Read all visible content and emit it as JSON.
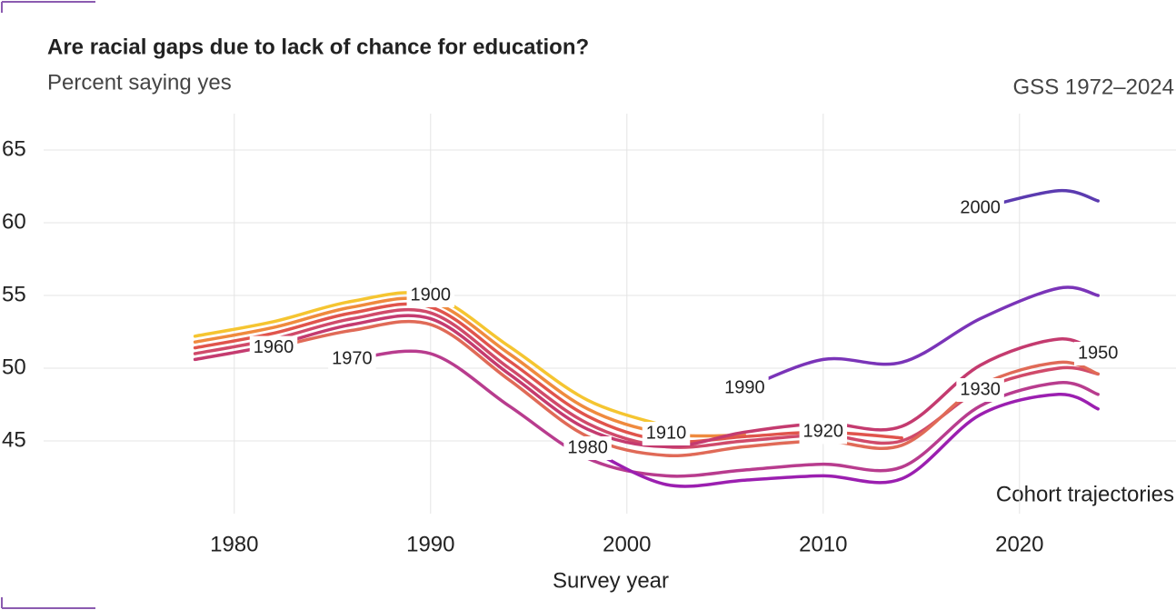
{
  "chart_data": {
    "type": "line",
    "title": "Are racial gaps due to lack of chance for education?",
    "subtitle": "Percent saying yes",
    "source": "GSS 1972–2024",
    "annotation": "Cohort trajectories",
    "x_label": "Survey year",
    "x": [
      1978,
      1982,
      1986,
      1990,
      1994,
      1998,
      2002,
      2006,
      2010,
      2014,
      2018,
      2022,
      2024
    ],
    "xlim": [
      1972,
      2027
    ],
    "xticks": [
      1980,
      1990,
      2000,
      2010,
      2020
    ],
    "ylim": [
      40,
      67.5
    ],
    "yticks": [
      45,
      50,
      55,
      60,
      65
    ],
    "grid": true,
    "series": [
      {
        "name": "1900",
        "color": "#f5c531",
        "values": [
          52.2,
          53.2,
          54.6,
          55.0,
          51.5,
          47.8,
          46.0,
          null,
          null,
          null,
          null,
          null,
          null
        ]
      },
      {
        "name": "1910",
        "color": "#ef8a3e",
        "values": [
          51.8,
          52.8,
          54.2,
          54.6,
          51.0,
          47.2,
          45.5,
          45.4,
          null,
          null,
          null,
          null,
          null
        ]
      },
      {
        "name": "1920",
        "color": "#e0544c",
        "values": [
          51.4,
          52.4,
          53.8,
          54.2,
          50.5,
          46.7,
          45.0,
          45.3,
          45.6,
          45.2,
          null,
          null,
          null
        ]
      },
      {
        "name": "1930",
        "color": "#d04a6a",
        "values": [
          51.0,
          52.0,
          53.4,
          53.8,
          50.0,
          46.2,
          44.6,
          45.0,
          45.4,
          45.0,
          48.5,
          50.0,
          49.6
        ]
      },
      {
        "name": "1950",
        "color": "#c43b6f",
        "values": [
          50.6,
          51.6,
          53.0,
          53.4,
          49.6,
          45.8,
          44.6,
          45.6,
          46.2,
          46.0,
          50.2,
          52.0,
          51.0
        ]
      },
      {
        "name": "1960",
        "color": "#e06a57",
        "values": [
          null,
          51.4,
          52.6,
          53.0,
          49.2,
          45.3,
          44.0,
          44.6,
          45.0,
          44.7,
          48.8,
          50.4,
          49.6
        ]
      },
      {
        "name": "1970",
        "color": "#b83c8e",
        "values": [
          null,
          null,
          50.6,
          51.0,
          47.4,
          43.8,
          42.6,
          43.0,
          43.4,
          43.2,
          47.4,
          49.0,
          48.2
        ]
      },
      {
        "name": "1980",
        "color": "#9b1fb0",
        "values": [
          null,
          null,
          null,
          null,
          null,
          44.5,
          42.0,
          42.3,
          42.6,
          42.4,
          46.8,
          48.2,
          47.2
        ]
      },
      {
        "name": "1990",
        "color": "#7a34b8",
        "values": [
          null,
          null,
          null,
          null,
          null,
          null,
          null,
          48.6,
          50.6,
          50.4,
          53.4,
          55.5,
          55.0
        ]
      },
      {
        "name": "2000",
        "color": "#5b3bb0",
        "values": [
          null,
          null,
          null,
          null,
          null,
          null,
          null,
          null,
          null,
          null,
          61.0,
          62.2,
          61.5
        ]
      }
    ]
  }
}
